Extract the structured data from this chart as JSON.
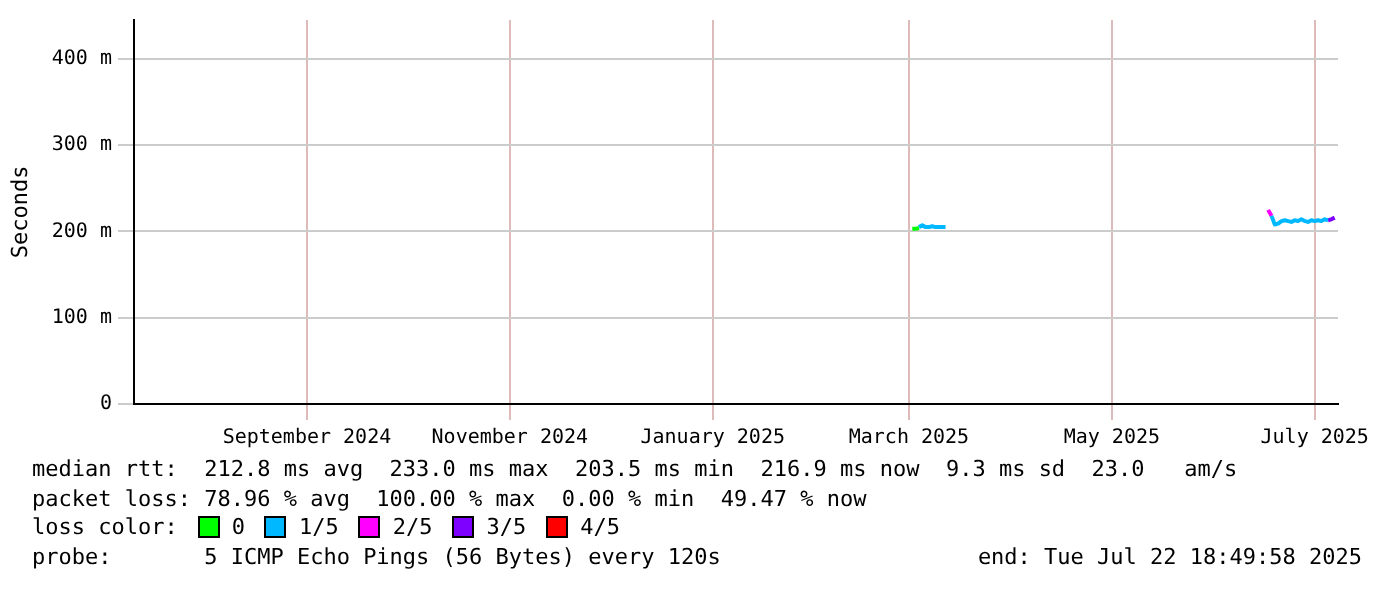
{
  "chart_data": {
    "type": "line",
    "ylabel": "Seconds",
    "legend_title": "loss color:",
    "legend": "bottom left",
    "grid": true,
    "marker": "none",
    "line_style": "solid",
    "xlim": [
      "2024-07-25",
      "2025-07-22"
    ],
    "xticks": [
      {
        "value": "2024-09-15",
        "label": "September 2024"
      },
      {
        "value": "2024-11-15",
        "label": "November 2024"
      },
      {
        "value": "2025-01-15",
        "label": "January 2025"
      },
      {
        "value": "2025-03-15",
        "label": "March 2025"
      },
      {
        "value": "2025-05-15",
        "label": "May 2025"
      },
      {
        "value": "2025-07-15",
        "label": "July 2025"
      }
    ],
    "ylim": [
      0,
      445
    ],
    "yticks": [
      0,
      {
        "value": 100,
        "label": "100 m"
      },
      {
        "value": 200,
        "label": "200 m"
      },
      {
        "value": 300,
        "label": "300 m"
      },
      {
        "value": 400,
        "label": "400 m"
      }
    ],
    "series": [
      {
        "name": "0",
        "color": "#00ff00",
        "x": [
          "2025-03-16",
          "2025-03-17",
          "2025-03-18"
        ],
        "values": [
          203,
          203,
          204
        ]
      },
      {
        "name": "1/5",
        "color": "#00b8ff",
        "x": [
          "2025-03-18",
          "2025-03-19",
          "2025-03-20",
          "2025-03-21",
          "2025-03-22",
          "2025-03-23",
          "2025-03-24",
          "2025-03-25",
          "2025-03-26",
          "2025-05-01",
          "2025-07-02",
          "2025-07-03",
          "2025-07-04",
          "2025-07-05",
          "2025-07-06",
          "2025-07-07",
          "2025-07-08",
          "2025-07-09",
          "2025-07-10",
          "2025-07-11",
          "2025-07-12",
          "2025-07-13",
          "2025-07-14",
          "2025-07-15",
          "2025-07-16",
          "2025-07-17",
          "2025-07-18",
          "2025-07-19"
        ],
        "values": [
          205,
          207,
          205,
          205,
          206,
          205,
          205,
          205,
          205,
          null,
          218,
          208,
          209,
          212,
          213,
          212,
          211,
          213,
          212,
          214,
          212,
          211,
          213,
          212,
          213,
          212,
          214,
          213
        ]
      },
      {
        "name": "2/5",
        "color": "#ff00ff",
        "x": [
          "2025-07-01",
          "2025-07-02"
        ],
        "values": [
          225,
          218
        ]
      },
      {
        "name": "3/5",
        "color": "#7e00ff",
        "x": [
          "2025-07-19",
          "2025-07-20",
          "2025-07-21"
        ],
        "values": [
          213,
          214,
          216
        ]
      },
      {
        "name": "4/5",
        "color": "#ff0000"
      }
    ],
    "annotations": [
      "median rtt:  212.8 ms avg  233.0 ms max  203.5 ms min  216.9 ms now  9.3 ms sd  23.0   am/s",
      "packet loss: 78.96 % avg  100.00 % max  0.00 % min  49.47 % now",
      "probe:       5 ICMP Echo Pings (56 Bytes) every 120s",
      "end: Tue Jul 22 18:49:58 2025"
    ]
  }
}
